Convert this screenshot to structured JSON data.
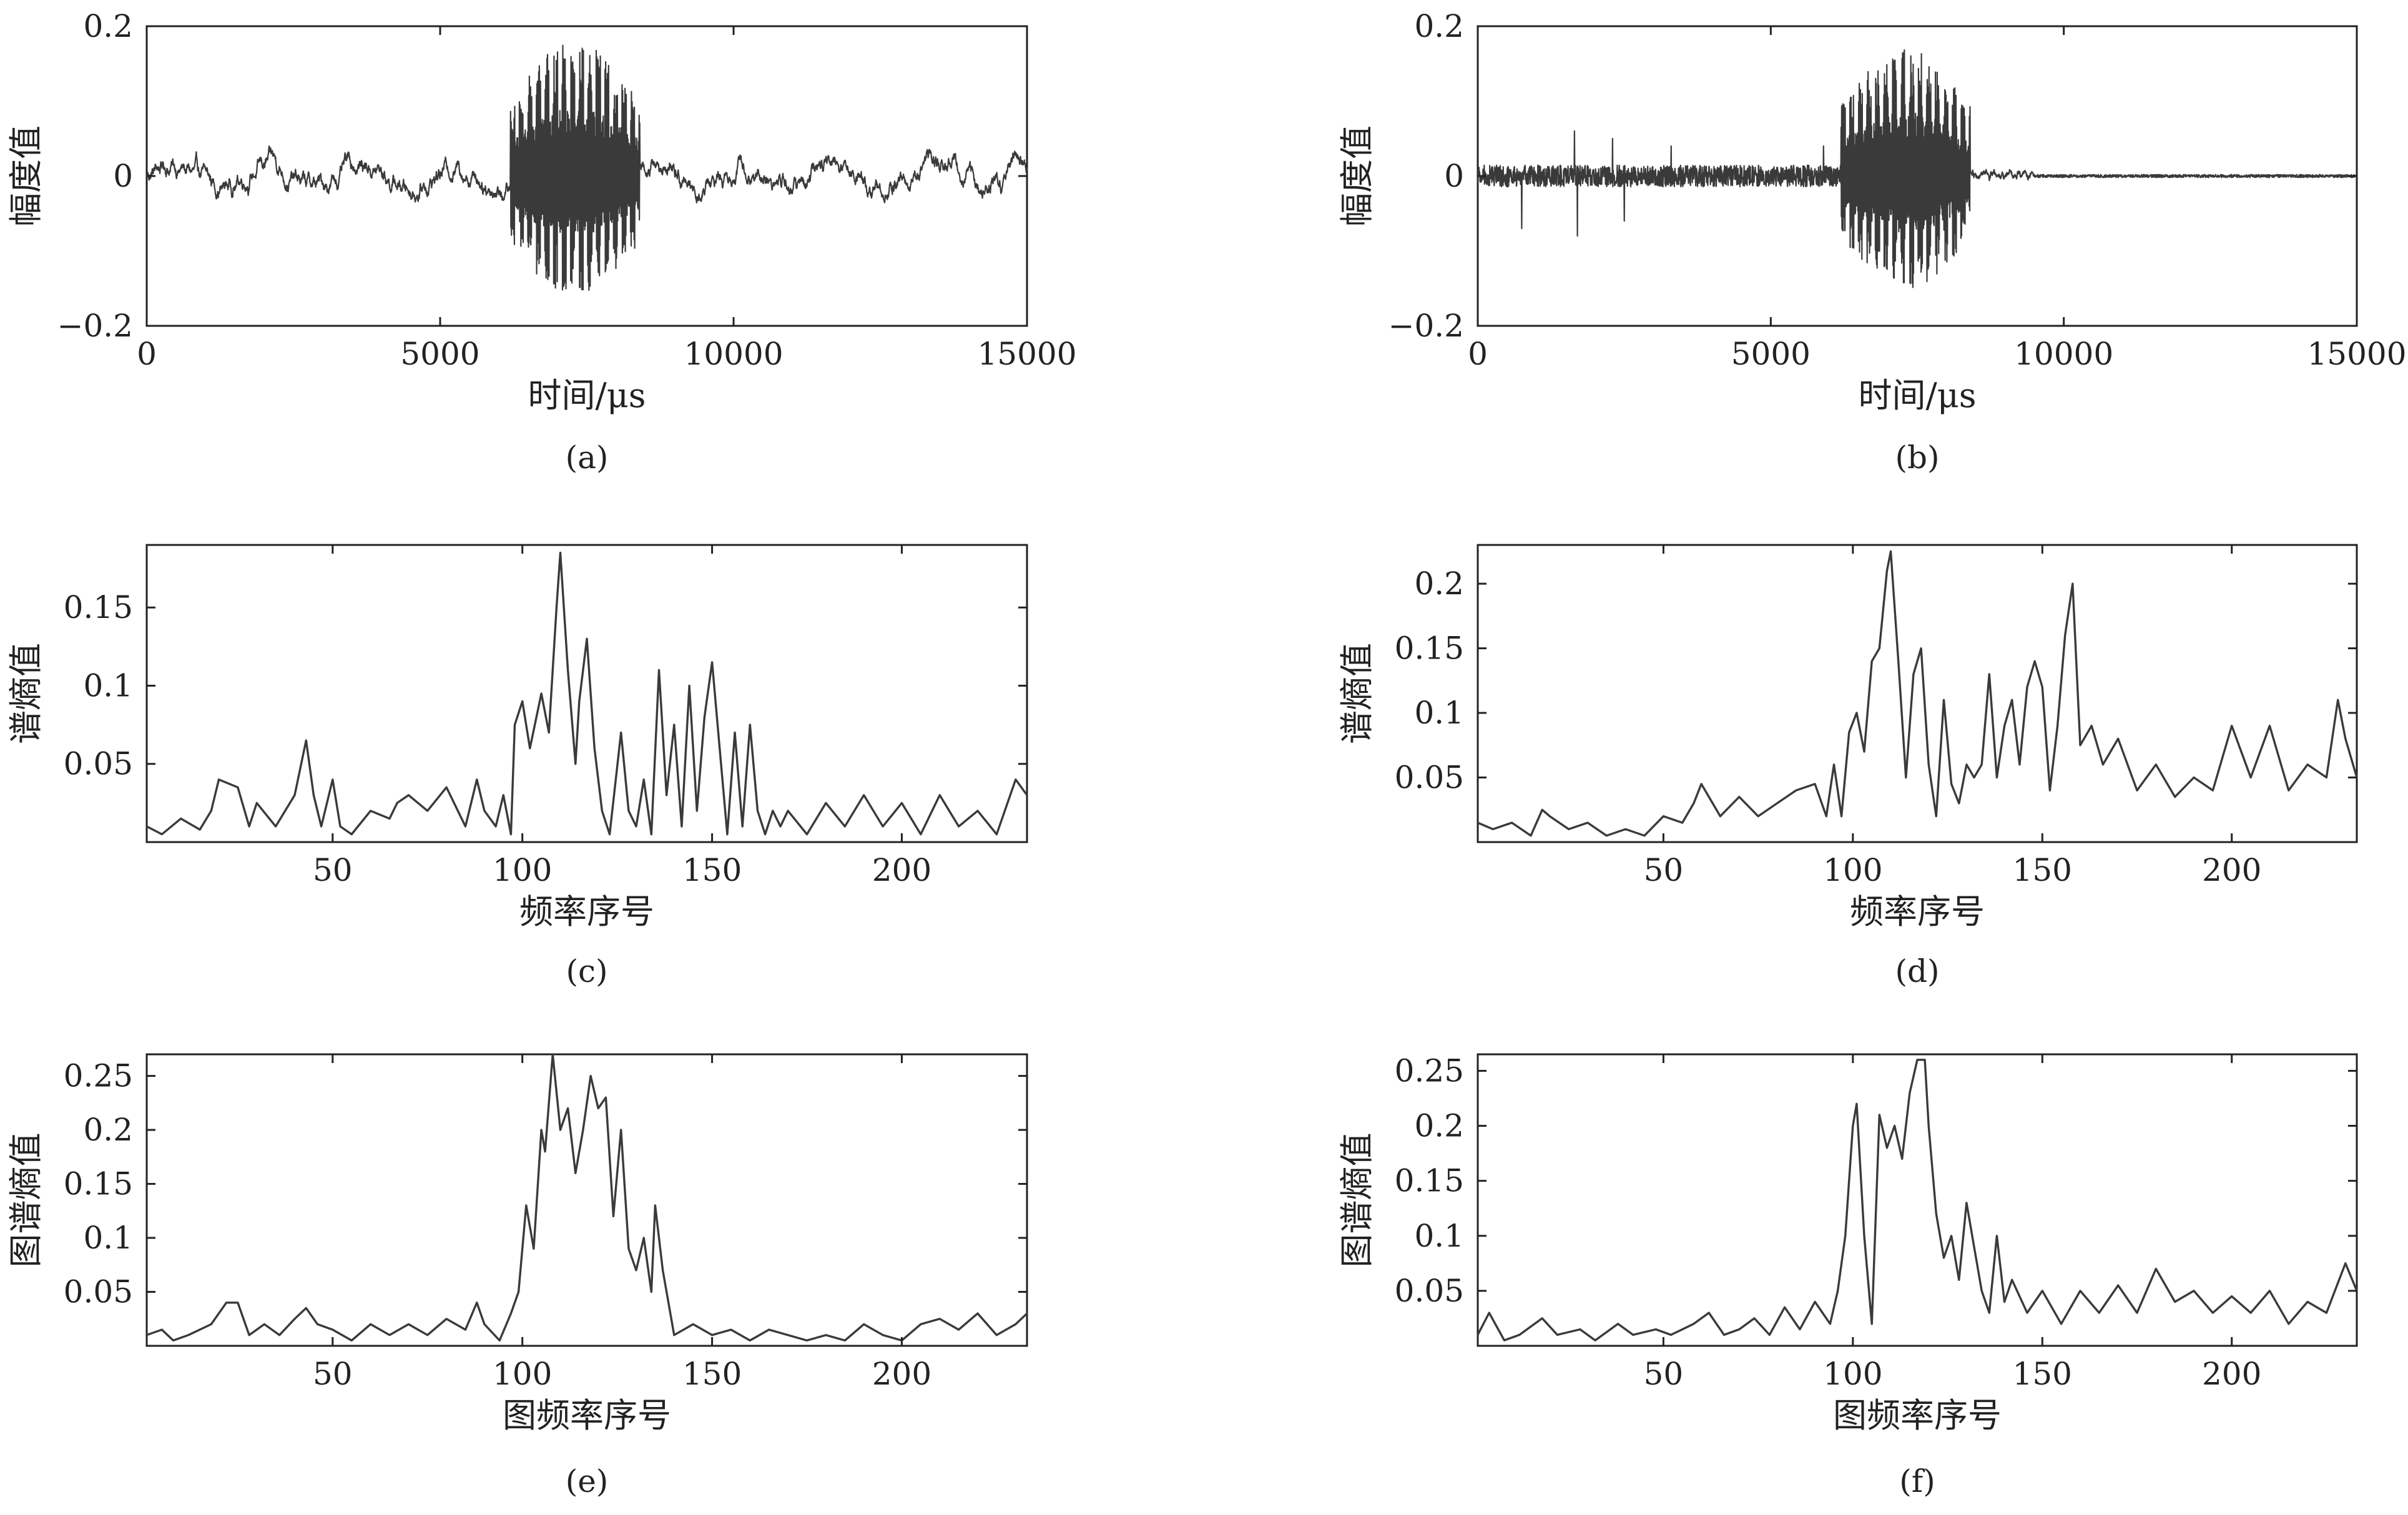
{
  "colors": {
    "line": "#3a3a3a",
    "axis": "#222222",
    "background": "#ffffff"
  },
  "chart_data": [
    {
      "type": "line",
      "panel": "(a)",
      "caption": "(a)",
      "xlabel": "时间/μs",
      "ylabel": "幅度值",
      "xlim": [
        0,
        15000
      ],
      "ylim": [
        -0.2,
        0.2
      ],
      "xticks": [
        0,
        5000,
        10000,
        15000
      ],
      "yticks": [
        -0.2,
        0,
        0.2
      ],
      "xtick_labels": [
        "0",
        "5000",
        "10000",
        "15000"
      ],
      "ytick_labels": [
        "−0.2",
        "0",
        "0.2"
      ],
      "signal": {
        "samples": 15000,
        "burst_start": 6200,
        "burst_end": 8400,
        "burst_amp_pos": 0.18,
        "burst_amp_neg": -0.16,
        "background_amp": 0.015,
        "background_noise": 0.012
      }
    },
    {
      "type": "line",
      "panel": "(b)",
      "caption": "(b)",
      "xlabel": "时间/μs",
      "ylabel": "幅度值",
      "xlim": [
        0,
        15000
      ],
      "ylim": [
        -0.2,
        0.2
      ],
      "xticks": [
        0,
        5000,
        10000,
        15000
      ],
      "yticks": [
        -0.2,
        0,
        0.2
      ],
      "xtick_labels": [
        "0",
        "5000",
        "10000",
        "15000"
      ],
      "ytick_labels": [
        "−0.2",
        "0",
        "0.2"
      ],
      "signal": {
        "samples": 15000,
        "burst_start": 6200,
        "burst_end": 8400,
        "burst_amp_pos": 0.17,
        "burst_amp_neg": -0.15,
        "background_amp": 0.008,
        "background_noise": 0.018,
        "early_spikes": [
          {
            "x": 750,
            "v": -0.07
          },
          {
            "x": 1650,
            "v": 0.06
          },
          {
            "x": 1700,
            "v": -0.08
          },
          {
            "x": 2300,
            "v": 0.05
          },
          {
            "x": 2500,
            "v": -0.06
          },
          {
            "x": 3300,
            "v": 0.04
          },
          {
            "x": 5900,
            "v": 0.04
          }
        ],
        "late_noise_end": 9500,
        "late_noise": 0.004
      }
    },
    {
      "type": "line",
      "panel": "(c)",
      "caption": "(c)",
      "xlabel": "频率序号",
      "ylabel": "谱熵值",
      "xlim": [
        1,
        233
      ],
      "ylim": [
        0.0,
        0.19
      ],
      "xticks": [
        50,
        100,
        150,
        200
      ],
      "yticks": [
        0.05,
        0.1,
        0.15
      ],
      "xtick_labels": [
        "50",
        "100",
        "150",
        "200"
      ],
      "ytick_labels": [
        "0.05",
        "0.1",
        "0.15"
      ],
      "x": [
        1,
        5,
        10,
        15,
        18,
        20,
        25,
        28,
        30,
        35,
        40,
        43,
        45,
        47,
        50,
        52,
        55,
        60,
        65,
        67,
        70,
        75,
        80,
        85,
        88,
        90,
        93,
        95,
        97,
        98,
        100,
        102,
        105,
        107,
        109,
        110,
        112,
        114,
        115,
        117,
        119,
        121,
        123,
        126,
        128,
        130,
        132,
        134,
        136,
        138,
        140,
        142,
        144,
        146,
        148,
        150,
        152,
        154,
        156,
        158,
        160,
        162,
        164,
        166,
        168,
        170,
        175,
        180,
        185,
        190,
        195,
        200,
        205,
        210,
        215,
        220,
        225,
        230,
        233
      ],
      "y": [
        0.01,
        0.005,
        0.015,
        0.008,
        0.02,
        0.04,
        0.035,
        0.01,
        0.025,
        0.01,
        0.03,
        0.065,
        0.03,
        0.01,
        0.04,
        0.01,
        0.005,
        0.02,
        0.015,
        0.025,
        0.03,
        0.02,
        0.035,
        0.01,
        0.04,
        0.02,
        0.01,
        0.03,
        0.005,
        0.075,
        0.09,
        0.06,
        0.095,
        0.07,
        0.15,
        0.185,
        0.11,
        0.05,
        0.09,
        0.13,
        0.06,
        0.02,
        0.005,
        0.07,
        0.02,
        0.01,
        0.04,
        0.005,
        0.11,
        0.03,
        0.075,
        0.01,
        0.1,
        0.02,
        0.08,
        0.115,
        0.06,
        0.005,
        0.07,
        0.01,
        0.075,
        0.02,
        0.005,
        0.02,
        0.01,
        0.02,
        0.005,
        0.025,
        0.01,
        0.03,
        0.01,
        0.025,
        0.005,
        0.03,
        0.01,
        0.02,
        0.005,
        0.04,
        0.03
      ]
    },
    {
      "type": "line",
      "panel": "(d)",
      "caption": "(d)",
      "xlabel": "频率序号",
      "ylabel": "谱熵值",
      "xlim": [
        1,
        233
      ],
      "ylim": [
        0.0,
        0.23
      ],
      "xticks": [
        50,
        100,
        150,
        200
      ],
      "yticks": [
        0.05,
        0.1,
        0.15,
        0.2
      ],
      "xtick_labels": [
        "50",
        "100",
        "150",
        "200"
      ],
      "ytick_labels": [
        "0.05",
        "0.1",
        "0.15",
        "0.2"
      ],
      "x": [
        1,
        5,
        10,
        15,
        18,
        20,
        25,
        30,
        35,
        40,
        45,
        50,
        55,
        58,
        60,
        65,
        70,
        75,
        80,
        85,
        90,
        93,
        95,
        97,
        99,
        101,
        103,
        105,
        107,
        109,
        110,
        112,
        114,
        116,
        118,
        120,
        122,
        124,
        126,
        128,
        130,
        132,
        134,
        136,
        138,
        140,
        142,
        144,
        146,
        148,
        150,
        152,
        154,
        156,
        158,
        160,
        163,
        166,
        170,
        175,
        180,
        185,
        190,
        195,
        200,
        205,
        210,
        215,
        220,
        225,
        228,
        230,
        233
      ],
      "y": [
        0.015,
        0.01,
        0.015,
        0.005,
        0.025,
        0.02,
        0.01,
        0.015,
        0.005,
        0.01,
        0.005,
        0.02,
        0.015,
        0.03,
        0.045,
        0.02,
        0.035,
        0.02,
        0.03,
        0.04,
        0.045,
        0.02,
        0.06,
        0.02,
        0.085,
        0.1,
        0.07,
        0.14,
        0.15,
        0.21,
        0.225,
        0.14,
        0.05,
        0.13,
        0.15,
        0.06,
        0.02,
        0.11,
        0.045,
        0.03,
        0.06,
        0.05,
        0.06,
        0.13,
        0.05,
        0.09,
        0.11,
        0.06,
        0.12,
        0.14,
        0.12,
        0.04,
        0.09,
        0.16,
        0.2,
        0.075,
        0.09,
        0.06,
        0.08,
        0.04,
        0.06,
        0.035,
        0.05,
        0.04,
        0.09,
        0.05,
        0.09,
        0.04,
        0.06,
        0.05,
        0.11,
        0.08,
        0.05
      ]
    },
    {
      "type": "line",
      "panel": "(e)",
      "caption": "(e)",
      "xlabel": "图频率序号",
      "ylabel": "图谱熵值",
      "xlim": [
        1,
        233
      ],
      "ylim": [
        0.0,
        0.27
      ],
      "xticks": [
        50,
        100,
        150,
        200
      ],
      "yticks": [
        0.05,
        0.1,
        0.15,
        0.2,
        0.25
      ],
      "xtick_labels": [
        "50",
        "100",
        "150",
        "200"
      ],
      "ytick_labels": [
        "0.05",
        "0.1",
        "0.15",
        "0.2",
        "0.25"
      ],
      "x": [
        1,
        5,
        8,
        12,
        18,
        22,
        25,
        28,
        32,
        36,
        40,
        43,
        46,
        50,
        55,
        60,
        65,
        70,
        75,
        80,
        85,
        88,
        90,
        94,
        97,
        99,
        101,
        103,
        105,
        106,
        108,
        110,
        112,
        114,
        116,
        118,
        120,
        122,
        124,
        126,
        128,
        130,
        132,
        134,
        135,
        137,
        140,
        145,
        150,
        155,
        160,
        165,
        170,
        175,
        180,
        185,
        190,
        195,
        200,
        205,
        210,
        215,
        220,
        225,
        230,
        233
      ],
      "y": [
        0.01,
        0.015,
        0.005,
        0.01,
        0.02,
        0.04,
        0.04,
        0.01,
        0.02,
        0.01,
        0.025,
        0.035,
        0.02,
        0.015,
        0.005,
        0.02,
        0.01,
        0.02,
        0.01,
        0.025,
        0.015,
        0.04,
        0.02,
        0.005,
        0.03,
        0.05,
        0.13,
        0.09,
        0.2,
        0.18,
        0.27,
        0.2,
        0.22,
        0.16,
        0.2,
        0.25,
        0.22,
        0.23,
        0.12,
        0.2,
        0.09,
        0.07,
        0.1,
        0.05,
        0.13,
        0.07,
        0.01,
        0.02,
        0.01,
        0.015,
        0.005,
        0.015,
        0.01,
        0.005,
        0.01,
        0.005,
        0.02,
        0.01,
        0.005,
        0.02,
        0.025,
        0.015,
        0.03,
        0.01,
        0.02,
        0.03
      ]
    },
    {
      "type": "line",
      "panel": "(f)",
      "caption": "(f)",
      "xlabel": "图频率序号",
      "ylabel": "图谱熵值",
      "xlim": [
        1,
        233
      ],
      "ylim": [
        0.0,
        0.265
      ],
      "xticks": [
        50,
        100,
        150,
        200
      ],
      "yticks": [
        0.05,
        0.1,
        0.15,
        0.2,
        0.25
      ],
      "xtick_labels": [
        "50",
        "100",
        "150",
        "200"
      ],
      "ytick_labels": [
        "0.05",
        "0.1",
        "0.15",
        "0.2",
        "0.25"
      ],
      "x": [
        1,
        4,
        8,
        12,
        18,
        22,
        28,
        32,
        38,
        42,
        48,
        52,
        58,
        62,
        66,
        70,
        74,
        78,
        82,
        86,
        90,
        94,
        96,
        98,
        100,
        101,
        103,
        105,
        107,
        109,
        111,
        113,
        115,
        117,
        119,
        120,
        122,
        124,
        126,
        128,
        130,
        132,
        134,
        136,
        138,
        140,
        142,
        146,
        150,
        155,
        160,
        165,
        170,
        175,
        180,
        185,
        190,
        195,
        200,
        205,
        210,
        215,
        220,
        225,
        230,
        233
      ],
      "y": [
        0.01,
        0.03,
        0.005,
        0.01,
        0.025,
        0.01,
        0.015,
        0.005,
        0.02,
        0.01,
        0.015,
        0.01,
        0.02,
        0.03,
        0.01,
        0.015,
        0.025,
        0.01,
        0.035,
        0.015,
        0.04,
        0.02,
        0.05,
        0.1,
        0.2,
        0.22,
        0.1,
        0.02,
        0.21,
        0.18,
        0.2,
        0.17,
        0.23,
        0.26,
        0.26,
        0.2,
        0.12,
        0.08,
        0.1,
        0.06,
        0.13,
        0.09,
        0.05,
        0.03,
        0.1,
        0.04,
        0.06,
        0.03,
        0.05,
        0.02,
        0.05,
        0.03,
        0.055,
        0.03,
        0.07,
        0.04,
        0.05,
        0.03,
        0.045,
        0.03,
        0.05,
        0.02,
        0.04,
        0.03,
        0.075,
        0.05
      ]
    }
  ]
}
